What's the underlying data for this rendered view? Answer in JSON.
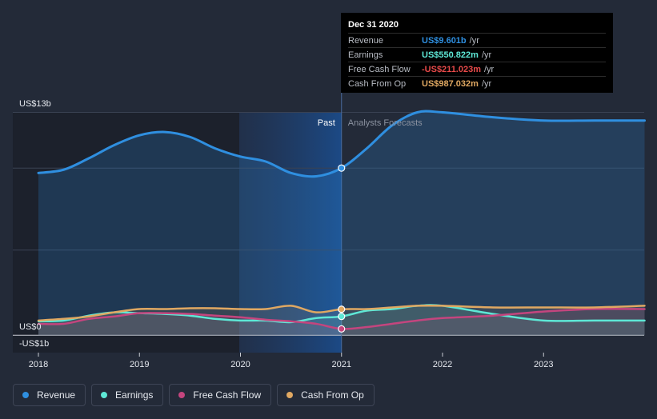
{
  "chart_data": {
    "type": "area",
    "x_ticks": [
      "2018",
      "2019",
      "2020",
      "2021",
      "2022",
      "2023"
    ],
    "y_ticks": [
      {
        "label": "US$13b",
        "value": 13
      },
      {
        "label": "US$0",
        "value": 0
      },
      {
        "label": "-US$1b",
        "value": -1
      }
    ],
    "ylim": [
      -1,
      13
    ],
    "xlim": [
      2018.0,
      2024.0
    ],
    "grid": true,
    "sections": {
      "past": "Past",
      "forecast": "Analysts Forecasts"
    },
    "divider_x": 2021.0,
    "series": [
      {
        "name": "Revenue",
        "color": "#2f8fe0",
        "x": [
          2018.0,
          2018.25,
          2018.5,
          2018.75,
          2019.0,
          2019.25,
          2019.5,
          2019.75,
          2020.0,
          2020.25,
          2020.5,
          2020.75,
          2021.0,
          2021.25,
          2021.5,
          2021.75,
          2022.0,
          2022.5,
          2023.0,
          2023.5,
          2024.0
        ],
        "values": [
          9.3,
          9.5,
          10.2,
          11.0,
          11.6,
          11.8,
          11.5,
          10.8,
          10.3,
          10.0,
          9.3,
          9.1,
          9.601,
          10.8,
          12.2,
          13.0,
          13.0,
          12.7,
          12.5,
          12.5,
          12.5
        ]
      },
      {
        "name": "Earnings",
        "color": "#5ee8d6",
        "x": [
          2018.0,
          2018.25,
          2018.5,
          2018.75,
          2019.0,
          2019.25,
          2019.5,
          2019.75,
          2020.0,
          2020.25,
          2020.5,
          2020.75,
          2021.0,
          2021.25,
          2021.5,
          2021.75,
          2022.0,
          2022.5,
          2023.0,
          2023.5,
          2024.0
        ],
        "values": [
          0.25,
          0.3,
          0.6,
          0.8,
          0.75,
          0.7,
          0.6,
          0.4,
          0.3,
          0.3,
          0.2,
          0.45,
          0.551,
          0.9,
          1.0,
          1.2,
          1.2,
          0.7,
          0.3,
          0.3,
          0.3
        ]
      },
      {
        "name": "Free Cash Flow",
        "color": "#c4457e",
        "x": [
          2018.0,
          2018.25,
          2018.5,
          2018.75,
          2019.0,
          2019.25,
          2019.5,
          2019.75,
          2020.0,
          2020.25,
          2020.5,
          2020.75,
          2021.0,
          2021.25,
          2021.5,
          2021.75,
          2022.0,
          2022.5,
          2023.0,
          2023.5,
          2024.0
        ],
        "values": [
          0.1,
          0.1,
          0.4,
          0.55,
          0.75,
          0.75,
          0.7,
          0.6,
          0.5,
          0.35,
          0.25,
          0.1,
          -0.211,
          -0.1,
          0.1,
          0.3,
          0.45,
          0.6,
          0.85,
          1.0,
          1.0
        ]
      },
      {
        "name": "Cash From Op",
        "color": "#e0a862",
        "x": [
          2018.0,
          2018.25,
          2018.5,
          2018.75,
          2019.0,
          2019.25,
          2019.5,
          2019.75,
          2020.0,
          2020.25,
          2020.5,
          2020.75,
          2021.0,
          2021.25,
          2021.5,
          2021.75,
          2022.0,
          2022.5,
          2023.0,
          2023.5,
          2024.0
        ],
        "values": [
          0.3,
          0.4,
          0.55,
          0.8,
          1.0,
          1.0,
          1.05,
          1.05,
          1.0,
          1.0,
          1.2,
          0.8,
          0.987,
          1.0,
          1.1,
          1.2,
          1.2,
          1.1,
          1.1,
          1.1,
          1.2
        ]
      }
    ]
  },
  "tooltip": {
    "date": "Dec 31 2020",
    "rows": [
      {
        "label": "Revenue",
        "value": "US$9.601b",
        "unit": "/yr",
        "color": "#2f8fe0"
      },
      {
        "label": "Earnings",
        "value": "US$550.822m",
        "unit": "/yr",
        "color": "#5ee8d6"
      },
      {
        "label": "Free Cash Flow",
        "value": "-US$211.023m",
        "unit": "/yr",
        "color": "#e84a4a"
      },
      {
        "label": "Cash From Op",
        "value": "US$987.032m",
        "unit": "/yr",
        "color": "#e0a862"
      }
    ]
  },
  "legend": [
    {
      "label": "Revenue",
      "color": "#2f8fe0"
    },
    {
      "label": "Earnings",
      "color": "#5ee8d6"
    },
    {
      "label": "Free Cash Flow",
      "color": "#c4457e"
    },
    {
      "label": "Cash From Op",
      "color": "#e0a862"
    }
  ]
}
